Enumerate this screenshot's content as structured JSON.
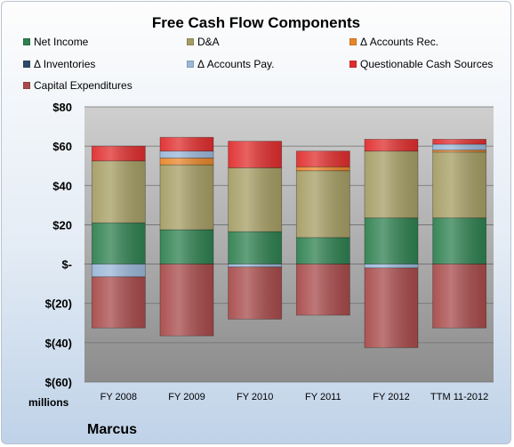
{
  "chart_data": {
    "type": "bar",
    "stacked": true,
    "title": "Free Cash Flow Components",
    "categories": [
      "FY 2008",
      "FY 2009",
      "FY 2010",
      "FY 2011",
      "FY 2012",
      "TTM 11-2012"
    ],
    "series": [
      {
        "name": "Net Income",
        "color": "#2e8050",
        "values": [
          21,
          17.5,
          16.5,
          13.5,
          23.5,
          23.5
        ]
      },
      {
        "name": "D&A",
        "color": "#a59d64",
        "values": [
          31.5,
          33,
          32.5,
          34,
          34,
          33.5
        ]
      },
      {
        "name": "Δ Accounts Rec.",
        "color": "#e9862a",
        "values": [
          0,
          3.5,
          0,
          2,
          0,
          1
        ]
      },
      {
        "name": "Δ Inventories",
        "color": "#2f4a68",
        "values": [
          0,
          0,
          0,
          0,
          0,
          0
        ]
      },
      {
        "name": "Δ Accounts Pay.",
        "color": "#9ab7d8",
        "values": [
          -6.5,
          3.5,
          -1.5,
          0,
          -2,
          3
        ]
      },
      {
        "name": "Questionable Cash Sources",
        "color": "#e02d2d",
        "values": [
          7.5,
          7,
          13.5,
          8,
          6,
          2.5
        ]
      },
      {
        "name": "Capital Expenditures",
        "color": "#a84a4a",
        "values": [
          -26,
          -36.5,
          -26.5,
          -26,
          -40.5,
          -32.5
        ]
      }
    ],
    "ylim": [
      -60,
      80
    ],
    "yticks": [
      80,
      60,
      40,
      20,
      0,
      -20,
      -40,
      -60
    ],
    "ytick_labels": [
      "$80",
      "$60",
      "$40",
      "$20",
      "$-",
      "$(20)",
      "$(40)",
      "$(60)"
    ],
    "ylabel": "",
    "xlabel": "",
    "unit_label": "millions",
    "grid": true,
    "legend_position": "top"
  },
  "footer": "Marcus"
}
